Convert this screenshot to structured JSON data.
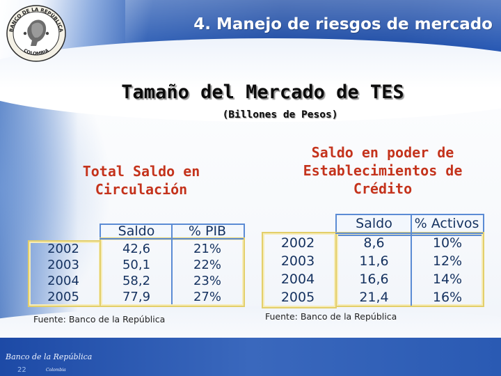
{
  "header": {
    "title": "4. Manejo de riesgos de mercado",
    "logo_text_top": "BANCO DE LA REPÚBLICA",
    "logo_text_bottom": "COLOMBIA"
  },
  "main": {
    "title": "Tamaño del Mercado de TES",
    "subtitle": "(Billones de Pesos)"
  },
  "left_section": {
    "heading_line1": "Total Saldo en",
    "heading_line2": "Circulación",
    "table": {
      "headers": [
        "Saldo",
        "% PIB"
      ],
      "rows": [
        {
          "year": "2002",
          "saldo": "42,6",
          "pct": "21%"
        },
        {
          "year": "2003",
          "saldo": "50,1",
          "pct": "22%"
        },
        {
          "year": "2004",
          "saldo": "58,2",
          "pct": "23%"
        },
        {
          "year": "2005",
          "saldo": "77,9",
          "pct": "27%"
        }
      ]
    },
    "source": "Fuente: Banco de la República"
  },
  "right_section": {
    "heading_line1": "Saldo en poder de",
    "heading_line2": "Establecimientos de",
    "heading_line3": "Crédito",
    "table": {
      "headers": [
        "Saldo",
        "% Activos"
      ],
      "rows": [
        {
          "year": "2002",
          "saldo": "8,6",
          "pct": "10%"
        },
        {
          "year": "2003",
          "saldo": "11,6",
          "pct": "12%"
        },
        {
          "year": "2004",
          "saldo": "16,6",
          "pct": "14%"
        },
        {
          "year": "2005",
          "saldo": "21,4",
          "pct": "16%"
        }
      ]
    },
    "source": "Fuente: Banco de la República"
  },
  "footer": {
    "signature": "Banco de la República",
    "signature_sub": "Colombia",
    "page_number": "22"
  },
  "colors": {
    "heading_accent": "#c4331c",
    "header_blue": "#1b4aa4",
    "table_border_blue": "#5b8bd4",
    "table_border_yellow": "#e3cf6b"
  }
}
